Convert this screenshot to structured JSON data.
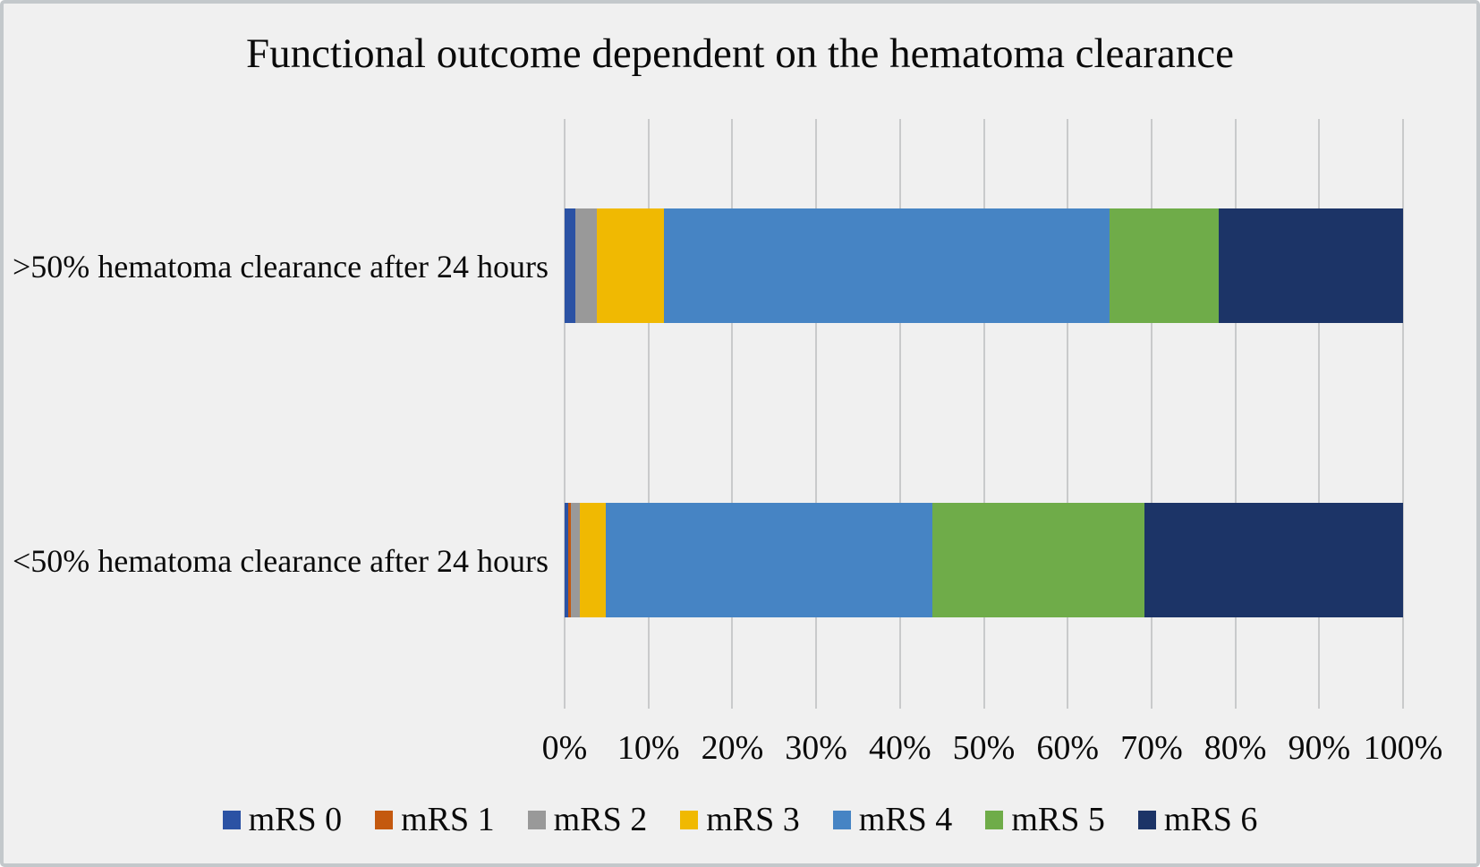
{
  "figure": {
    "title": "Functional outcome dependent on the hematoma clearance"
  },
  "chart_data": {
    "type": "bar",
    "orientation": "horizontal",
    "stacked": true,
    "stack_unit": "percent",
    "title": "Functional outcome dependent on the hematoma clearance",
    "categories": [
      ">50% hematoma clearance after 24 hours",
      "<50% hematoma clearance after 24 hours"
    ],
    "series": [
      {
        "name": "mRS 0",
        "color": "#2B52A4",
        "values": [
          1.3,
          0.4
        ]
      },
      {
        "name": "mRS 1",
        "color": "#C4590F",
        "values": [
          0.0,
          0.4
        ]
      },
      {
        "name": "mRS 2",
        "color": "#999999",
        "values": [
          2.5,
          1.0
        ]
      },
      {
        "name": "mRS 3",
        "color": "#F0B902",
        "values": [
          8.0,
          3.1
        ]
      },
      {
        "name": "mRS 4",
        "color": "#4684C4",
        "values": [
          53.2,
          39.0
        ]
      },
      {
        "name": "mRS 5",
        "color": "#6FAC49",
        "values": [
          13.0,
          25.3
        ]
      },
      {
        "name": "mRS 6",
        "color": "#1C3467",
        "values": [
          22.0,
          30.8
        ]
      }
    ],
    "x_axis": {
      "min": 0,
      "max": 100,
      "tick_labels": [
        "0%",
        "10%",
        "20%",
        "30%",
        "40%",
        "50%",
        "60%",
        "70%",
        "80%",
        "90%",
        "100%"
      ]
    },
    "legend_position": "bottom",
    "grid": "vertical"
  }
}
